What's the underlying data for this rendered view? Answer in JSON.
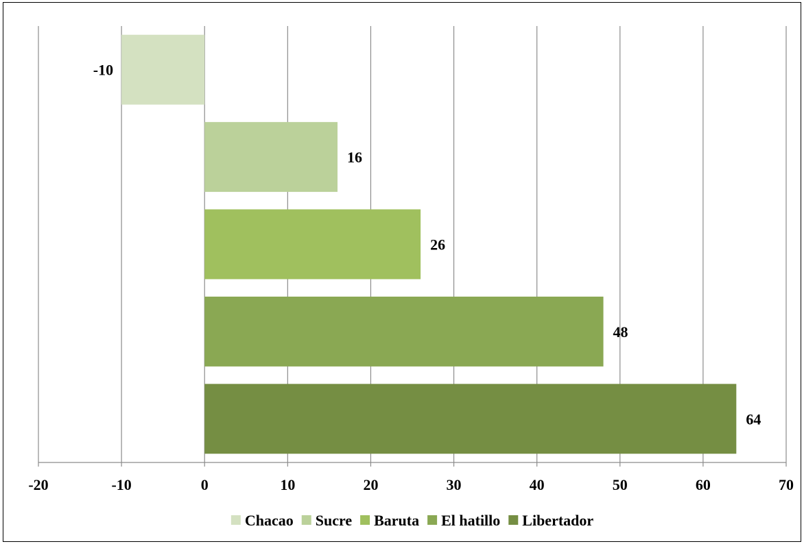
{
  "chart_data": {
    "type": "bar",
    "orientation": "horizontal",
    "categories": [
      "Chacao",
      "Sucre",
      "Baruta",
      "El hatillo",
      "Libertador"
    ],
    "values": [
      -10,
      16,
      26,
      48,
      64
    ],
    "value_labels": [
      "-10",
      "16",
      "26",
      "48",
      "64"
    ],
    "colors": [
      "#d4e1c1",
      "#bbd19a",
      "#a0c05e",
      "#8aa853",
      "#758e43"
    ],
    "xlim": [
      -20,
      70
    ],
    "xticks": [
      -20,
      -10,
      0,
      10,
      20,
      30,
      40,
      50,
      60,
      70
    ],
    "xtick_labels": [
      "-20",
      "-10",
      "0",
      "10",
      "20",
      "30",
      "40",
      "50",
      "60",
      "70"
    ],
    "grid": "vertical",
    "legend_position": "bottom",
    "title": "",
    "xlabel": "",
    "ylabel": ""
  }
}
